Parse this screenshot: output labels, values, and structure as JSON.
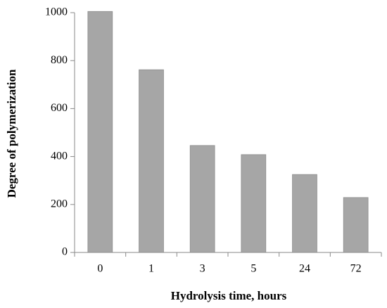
{
  "chart_data": {
    "type": "bar",
    "x_label": "Hydrolysis time, hours",
    "y_label": "Degree of polymerization",
    "categories": [
      "0",
      "1",
      "3",
      "5",
      "24",
      "72"
    ],
    "values": [
      1005,
      762,
      446,
      408,
      325,
      229
    ],
    "color": "#a6a6a6",
    "ylim": [
      0,
      1000
    ],
    "yticks": [
      0,
      200,
      400,
      600,
      800,
      1000
    ],
    "grid": false
  }
}
